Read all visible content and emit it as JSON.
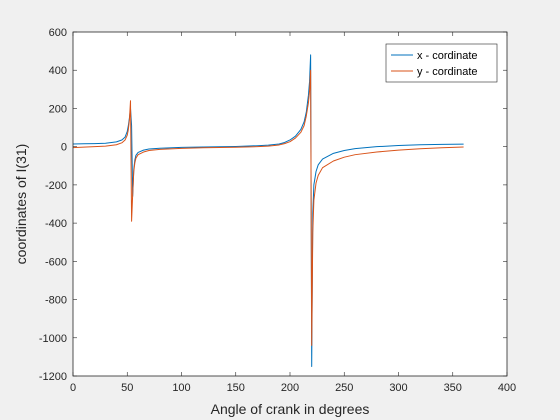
{
  "chart_data": {
    "type": "line",
    "title": "",
    "xlabel": "Angle of crank in degrees",
    "ylabel": "coordinates of I(31)",
    "xlim": [
      0,
      400
    ],
    "ylim": [
      -1200,
      600
    ],
    "xticks": [
      0,
      50,
      100,
      150,
      200,
      250,
      300,
      350,
      400
    ],
    "yticks": [
      -1200,
      -1000,
      -800,
      -600,
      -400,
      -200,
      0,
      200,
      400,
      600
    ],
    "grid": false,
    "legend_location": "top-right",
    "series": [
      {
        "name": "x - cordinate",
        "color": "#0072BD",
        "points": [
          [
            0,
            14
          ],
          [
            10,
            15
          ],
          [
            20,
            16
          ],
          [
            30,
            18
          ],
          [
            40,
            25
          ],
          [
            45,
            35
          ],
          [
            48,
            50
          ],
          [
            50,
            80
          ],
          [
            51,
            110
          ],
          [
            52,
            150
          ],
          [
            53,
            200
          ],
          [
            54,
            110
          ],
          [
            55,
            -260
          ],
          [
            56,
            -120
          ],
          [
            57,
            -70
          ],
          [
            58,
            -45
          ],
          [
            60,
            -30
          ],
          [
            65,
            -18
          ],
          [
            70,
            -12
          ],
          [
            80,
            -8
          ],
          [
            100,
            -4
          ],
          [
            120,
            -2
          ],
          [
            150,
            1
          ],
          [
            170,
            5
          ],
          [
            180,
            8
          ],
          [
            190,
            14
          ],
          [
            195,
            22
          ],
          [
            200,
            35
          ],
          [
            205,
            55
          ],
          [
            210,
            90
          ],
          [
            213,
            130
          ],
          [
            215,
            180
          ],
          [
            217,
            270
          ],
          [
            218,
            340
          ],
          [
            219,
            480
          ],
          [
            220,
            -1150
          ],
          [
            221,
            -350
          ],
          [
            222,
            -200
          ],
          [
            224,
            -130
          ],
          [
            226,
            -95
          ],
          [
            230,
            -65
          ],
          [
            240,
            -35
          ],
          [
            250,
            -20
          ],
          [
            260,
            -10
          ],
          [
            280,
            0
          ],
          [
            300,
            6
          ],
          [
            320,
            10
          ],
          [
            340,
            12
          ],
          [
            360,
            13
          ]
        ]
      },
      {
        "name": "y - cordinate",
        "color": "#D95319",
        "points": [
          [
            0,
            -5
          ],
          [
            20,
            0
          ],
          [
            30,
            3
          ],
          [
            40,
            10
          ],
          [
            45,
            20
          ],
          [
            48,
            35
          ],
          [
            50,
            60
          ],
          [
            51,
            90
          ],
          [
            52,
            140
          ],
          [
            53,
            240
          ],
          [
            54,
            -390
          ],
          [
            55,
            -250
          ],
          [
            56,
            -130
          ],
          [
            57,
            -85
          ],
          [
            58,
            -60
          ],
          [
            60,
            -42
          ],
          [
            65,
            -28
          ],
          [
            70,
            -20
          ],
          [
            80,
            -14
          ],
          [
            100,
            -9
          ],
          [
            120,
            -6
          ],
          [
            150,
            -3
          ],
          [
            170,
            0
          ],
          [
            180,
            3
          ],
          [
            190,
            9
          ],
          [
            195,
            16
          ],
          [
            200,
            26
          ],
          [
            205,
            45
          ],
          [
            210,
            75
          ],
          [
            213,
            110
          ],
          [
            215,
            160
          ],
          [
            217,
            230
          ],
          [
            218,
            290
          ],
          [
            219,
            400
          ],
          [
            220,
            -1040
          ],
          [
            221,
            -450
          ],
          [
            222,
            -280
          ],
          [
            224,
            -190
          ],
          [
            226,
            -150
          ],
          [
            230,
            -110
          ],
          [
            240,
            -75
          ],
          [
            250,
            -55
          ],
          [
            260,
            -42
          ],
          [
            280,
            -28
          ],
          [
            300,
            -18
          ],
          [
            320,
            -11
          ],
          [
            340,
            -6
          ],
          [
            360,
            -2
          ]
        ]
      }
    ]
  }
}
